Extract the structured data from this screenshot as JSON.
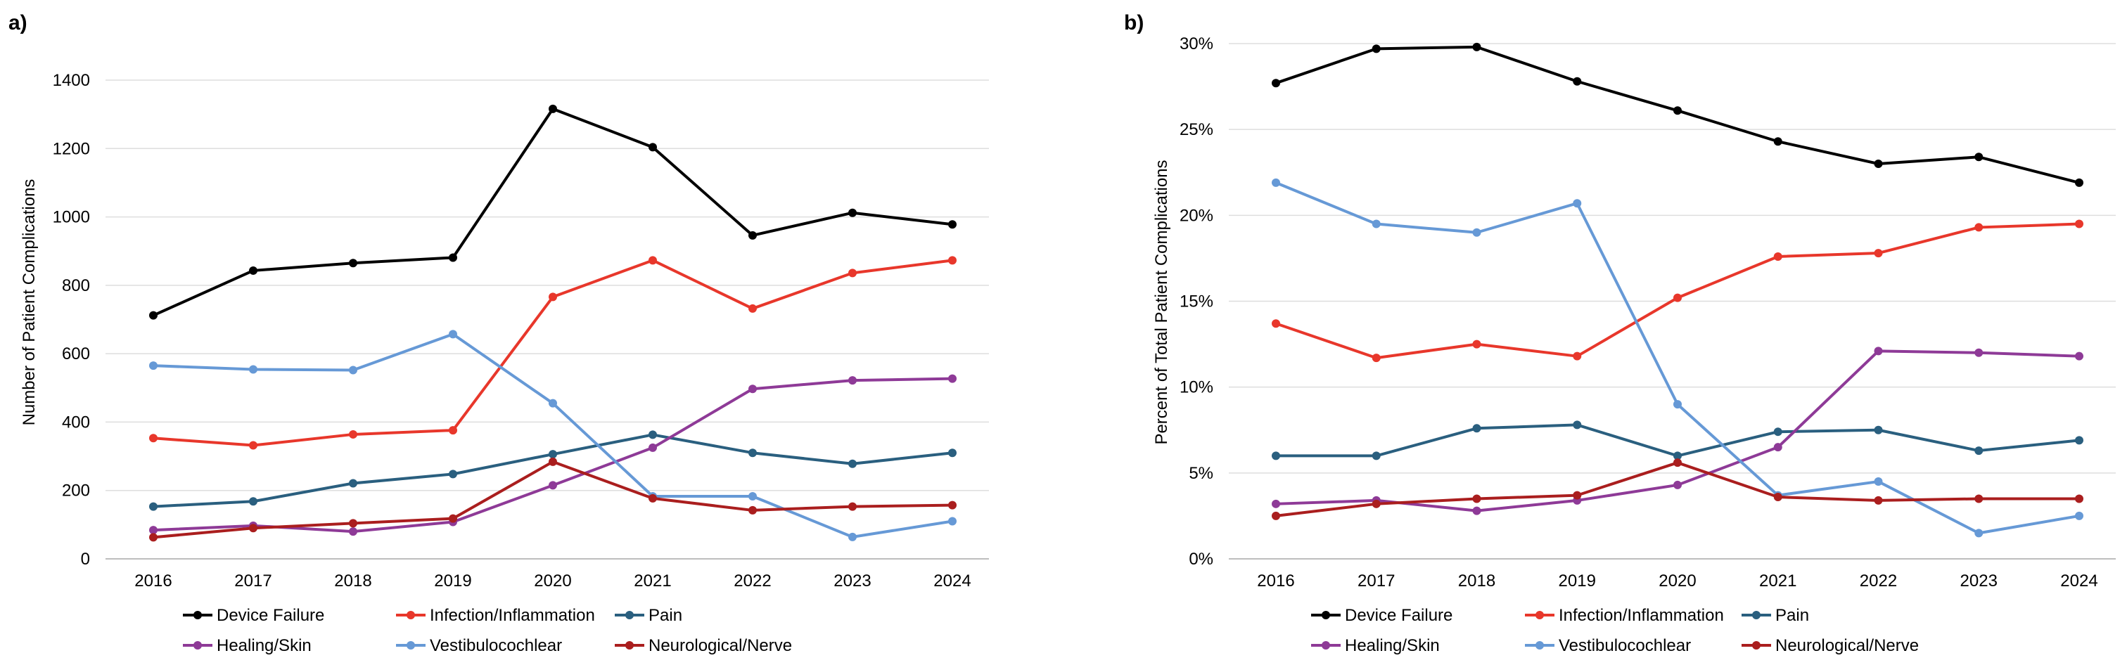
{
  "series_colors": {
    "Device Failure": "#000000",
    "Infection/Inflammation": "#e8372b",
    "Pain": "#2a5f7f",
    "Healing/Skin": "#8e3a97",
    "Vestibulocochlear": "#6699d6",
    "Neurological/Nerve": "#aa1e1e"
  },
  "chart_data": [
    {
      "panel_label": "a)",
      "type": "line",
      "title": "",
      "xlabel": "",
      "ylabel": "Number of Patient Complications",
      "ylim": [
        0,
        1400
      ],
      "yticks": [
        0,
        200,
        400,
        600,
        800,
        1000,
        1200,
        1400
      ],
      "ytick_labels": [
        "0",
        "200",
        "400",
        "600",
        "800",
        "1000",
        "1200",
        "1400"
      ],
      "grid": true,
      "legend": "bottom",
      "categories": [
        "2016",
        "2017",
        "2018",
        "2019",
        "2020",
        "2021",
        "2022",
        "2023",
        "2024"
      ],
      "series": [
        {
          "name": "Device Failure",
          "values": [
            712,
            843,
            865,
            881,
            1316,
            1204,
            946,
            1012,
            978
          ]
        },
        {
          "name": "Infection/Inflammation",
          "values": [
            353,
            332,
            364,
            376,
            766,
            873,
            732,
            836,
            873
          ]
        },
        {
          "name": "Pain",
          "values": [
            153,
            168,
            221,
            248,
            306,
            363,
            310,
            278,
            310
          ]
        },
        {
          "name": "Healing/Skin",
          "values": [
            84,
            97,
            80,
            108,
            215,
            325,
            497,
            522,
            527
          ]
        },
        {
          "name": "Vestibulocochlear",
          "values": [
            565,
            554,
            552,
            657,
            455,
            183,
            183,
            64,
            110
          ]
        },
        {
          "name": "Neurological/Nerve",
          "values": [
            63,
            90,
            104,
            118,
            284,
            177,
            142,
            153,
            157
          ]
        }
      ]
    },
    {
      "panel_label": "b)",
      "type": "line",
      "title": "",
      "xlabel": "",
      "ylabel": "Percent of Total Patient Complications",
      "ylim": [
        0,
        30
      ],
      "yticks": [
        0,
        5,
        10,
        15,
        20,
        25,
        30
      ],
      "ytick_labels": [
        "0%",
        "5%",
        "10%",
        "15%",
        "20%",
        "25%",
        "30%"
      ],
      "grid": true,
      "legend": "bottom",
      "categories": [
        "2016",
        "2017",
        "2018",
        "2019",
        "2020",
        "2021",
        "2022",
        "2023",
        "2024"
      ],
      "series": [
        {
          "name": "Device Failure",
          "values": [
            27.7,
            29.7,
            29.8,
            27.8,
            26.1,
            24.3,
            23.0,
            23.4,
            21.9
          ]
        },
        {
          "name": "Infection/Inflammation",
          "values": [
            13.7,
            11.7,
            12.5,
            11.8,
            15.2,
            17.6,
            17.8,
            19.3,
            19.5
          ]
        },
        {
          "name": "Pain",
          "values": [
            6.0,
            6.0,
            7.6,
            7.8,
            6.0,
            7.4,
            7.5,
            6.3,
            6.9
          ]
        },
        {
          "name": "Healing/Skin",
          "values": [
            3.2,
            3.4,
            2.8,
            3.4,
            4.3,
            6.5,
            12.1,
            12.0,
            11.8
          ]
        },
        {
          "name": "Vestibulocochlear",
          "values": [
            21.9,
            19.5,
            19.0,
            20.7,
            9.0,
            3.7,
            4.5,
            1.5,
            2.5
          ]
        },
        {
          "name": "Neurological/Nerve",
          "values": [
            2.5,
            3.2,
            3.5,
            3.7,
            5.6,
            3.6,
            3.4,
            3.5,
            3.5
          ]
        }
      ]
    }
  ]
}
